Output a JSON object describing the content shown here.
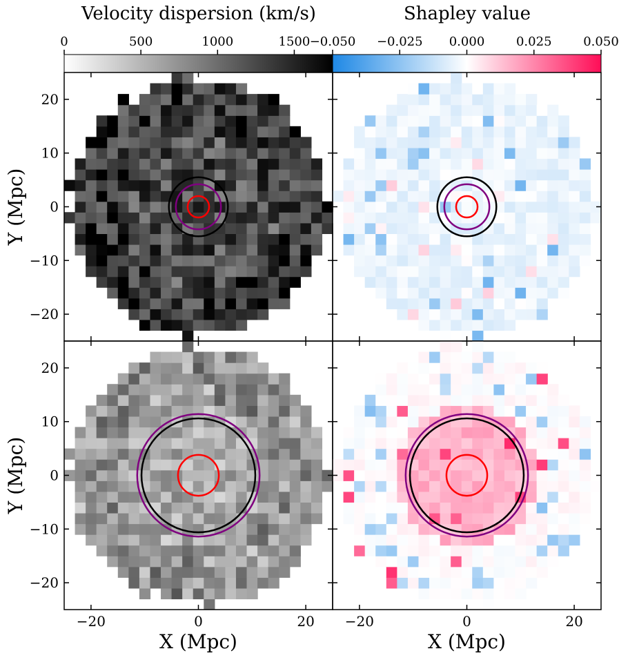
{
  "chart_data": {
    "type": "heatmap",
    "layout": "2x2 grid of heatmap panels with shared colorbars on top",
    "colorbars": [
      {
        "label": "Velocity dispersion (km/s)",
        "ticks": [
          "0",
          "500",
          "1000",
          "1500"
        ],
        "tick_values": [
          0,
          500,
          1000,
          1500
        ],
        "range": [
          0,
          1750
        ],
        "colormap": "white-to-black",
        "colors": [
          "#ffffff",
          "#000000"
        ]
      },
      {
        "label": "Shapley value",
        "ticks": [
          "−0.050",
          "−0.025",
          "0.000",
          "0.025",
          "0.050"
        ],
        "tick_values": [
          -0.05,
          -0.025,
          0.0,
          0.025,
          0.05
        ],
        "range": [
          -0.05,
          0.05
        ],
        "colormap": "blue-white-pink",
        "colors": [
          "#1e88e5",
          "#ffffff",
          "#ff0d57"
        ]
      }
    ],
    "axes": {
      "xlabel": "X (Mpc)",
      "ylabel": "Y (Mpc)",
      "xlim": [
        -25,
        25
      ],
      "ylim": [
        -25,
        25
      ],
      "x_ticks": [
        -20,
        0,
        20
      ],
      "x_tick_labels": [
        "−20",
        "0",
        "20"
      ],
      "y_ticks": [
        20,
        10,
        0,
        -10,
        -20
      ],
      "y_tick_labels": [
        "20",
        "10",
        "0",
        "−10",
        "−20"
      ]
    },
    "grid": {
      "n": 25,
      "cell_size_mpc": 2,
      "map_radius_mpc": 24
    },
    "panels": [
      {
        "row": "top",
        "column": "left",
        "quantity": "velocity dispersion",
        "circles": [
          {
            "color": "#000000",
            "radius_mpc": 5.5
          },
          {
            "color": "#800080",
            "radius_mpc": 4.2
          },
          {
            "color": "#ff0000",
            "radius_mpc": 2.0
          }
        ]
      },
      {
        "row": "top",
        "column": "right",
        "quantity": "shapley",
        "circles": [
          {
            "color": "#000000",
            "radius_mpc": 5.5
          },
          {
            "color": "#800080",
            "radius_mpc": 4.2
          },
          {
            "color": "#ff0000",
            "radius_mpc": 2.0
          }
        ]
      },
      {
        "row": "bottom",
        "column": "left",
        "quantity": "velocity dispersion",
        "circles": [
          {
            "color": "#800080",
            "radius_mpc": 11.4
          },
          {
            "color": "#000000",
            "radius_mpc": 10.6
          },
          {
            "color": "#ff0000",
            "radius_mpc": 3.8
          }
        ]
      },
      {
        "row": "bottom",
        "column": "right",
        "quantity": "shapley",
        "circles": [
          {
            "color": "#800080",
            "radius_mpc": 11.4
          },
          {
            "color": "#000000",
            "radius_mpc": 10.6
          },
          {
            "color": "#ff0000",
            "radius_mpc": 3.8
          }
        ]
      }
    ]
  }
}
